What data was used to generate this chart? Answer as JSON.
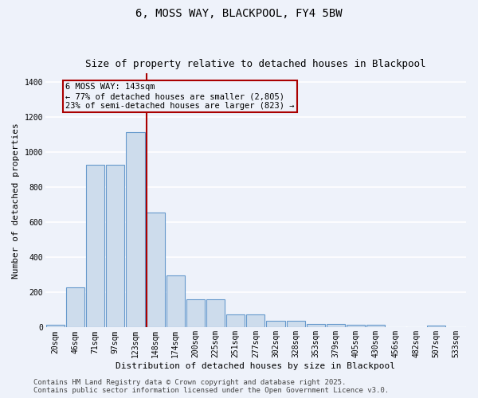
{
  "title_line1": "6, MOSS WAY, BLACKPOOL, FY4 5BW",
  "title_line2": "Size of property relative to detached houses in Blackpool",
  "xlabel": "Distribution of detached houses by size in Blackpool",
  "ylabel": "Number of detached properties",
  "bar_color": "#cddcec",
  "bar_edge_color": "#6699cc",
  "background_color": "#eef2fa",
  "grid_color": "#ffffff",
  "annotation_text": "6 MOSS WAY: 143sqm\n← 77% of detached houses are smaller (2,805)\n23% of semi-detached houses are larger (823) →",
  "vline_color": "#aa0000",
  "annotation_box_edgecolor": "#aa0000",
  "categories": [
    "20sqm",
    "46sqm",
    "71sqm",
    "97sqm",
    "123sqm",
    "148sqm",
    "174sqm",
    "200sqm",
    "225sqm",
    "251sqm",
    "277sqm",
    "302sqm",
    "328sqm",
    "353sqm",
    "379sqm",
    "405sqm",
    "430sqm",
    "456sqm",
    "482sqm",
    "507sqm",
    "533sqm"
  ],
  "values": [
    15,
    230,
    930,
    930,
    1115,
    655,
    295,
    160,
    160,
    75,
    75,
    40,
    40,
    22,
    22,
    15,
    15,
    0,
    0,
    10,
    0
  ],
  "ylim": [
    0,
    1450
  ],
  "yticks": [
    0,
    200,
    400,
    600,
    800,
    1000,
    1200,
    1400
  ],
  "footer": "Contains HM Land Registry data © Crown copyright and database right 2025.\nContains public sector information licensed under the Open Government Licence v3.0.",
  "title_fontsize": 10,
  "subtitle_fontsize": 9,
  "axis_label_fontsize": 8,
  "tick_fontsize": 7,
  "annotation_fontsize": 7.5,
  "footer_fontsize": 6.5
}
